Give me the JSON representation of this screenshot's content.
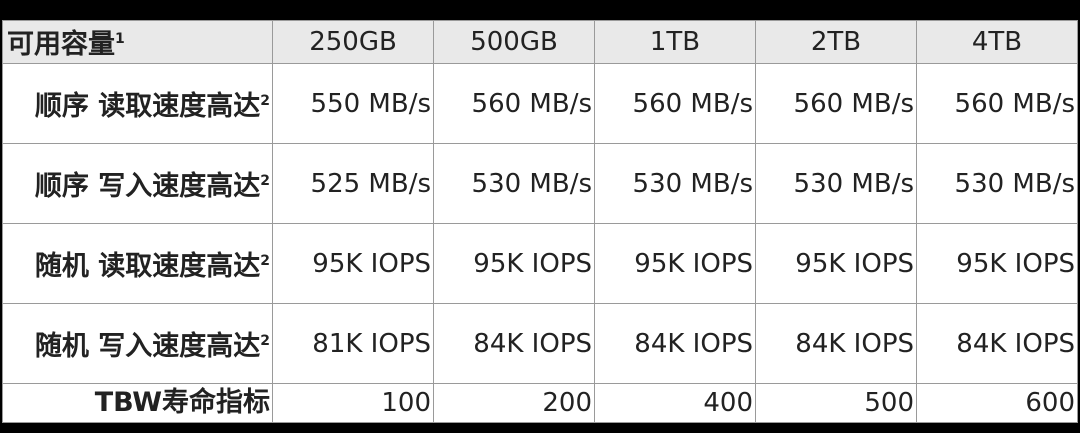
{
  "table": {
    "header": {
      "label": "可用容量",
      "note": "1",
      "cells": [
        "250GB",
        "500GB",
        "1TB",
        "2TB",
        "4TB"
      ]
    },
    "rows": [
      {
        "label": "顺序 读取速度高达",
        "note": "2",
        "cells": [
          "550 MB/s",
          "560 MB/s",
          "560 MB/s",
          "560 MB/s",
          "560 MB/s"
        ]
      },
      {
        "label": "顺序 写入速度高达",
        "note": "2",
        "cells": [
          "525 MB/s",
          "530 MB/s",
          "530 MB/s",
          "530 MB/s",
          "530 MB/s"
        ]
      },
      {
        "label": "随机 读取速度高达",
        "note": "2",
        "cells": [
          "95K IOPS",
          "95K IOPS",
          "95K IOPS",
          "95K IOPS",
          "95K IOPS"
        ]
      },
      {
        "label": "随机 写入速度高达",
        "note": "2",
        "cells": [
          "81K IOPS",
          "84K IOPS",
          "84K IOPS",
          "84K IOPS",
          "84K IOPS"
        ]
      },
      {
        "label": "TBW寿命指标",
        "cells": [
          "100",
          "200",
          "400",
          "500",
          "600"
        ]
      }
    ]
  }
}
